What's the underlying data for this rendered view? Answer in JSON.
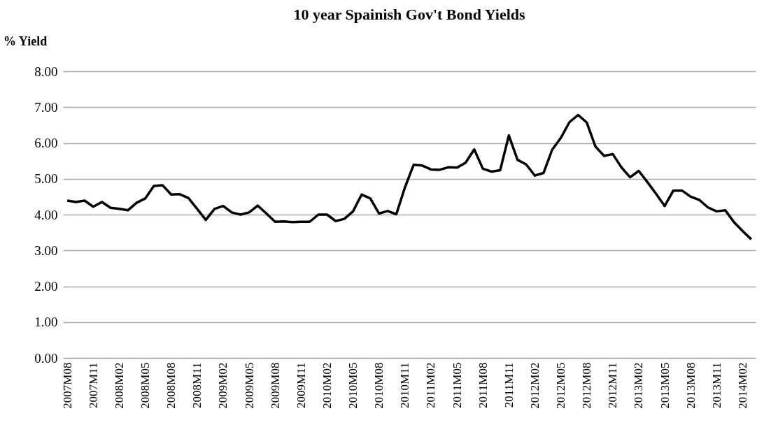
{
  "chart_data": {
    "type": "line",
    "title": "10 year Spainish Gov't Bond Yields",
    "ylabel": "% Yield",
    "categories": [
      "2007M08",
      null,
      null,
      "2007M11",
      null,
      null,
      "2008M02",
      null,
      null,
      "2008M05",
      null,
      null,
      "2008M08",
      null,
      null,
      "2008M11",
      null,
      null,
      "2009M02",
      null,
      null,
      "2009M05",
      null,
      null,
      "2009M08",
      null,
      null,
      "2009M11",
      null,
      null,
      "2010M02",
      null,
      null,
      "2010M05",
      null,
      null,
      "2010M08",
      null,
      null,
      "2010M11",
      null,
      null,
      "2011M02",
      null,
      null,
      "2011M05",
      null,
      null,
      "2011M08",
      null,
      null,
      "2011M11",
      null,
      null,
      "2012M02",
      null,
      null,
      "2012M05",
      null,
      null,
      "2012M08",
      null,
      null,
      "2012M11",
      null,
      null,
      "2013M02",
      null,
      null,
      "2013M05",
      null,
      null,
      "2013M08",
      null,
      null,
      "2013M11",
      null,
      null,
      "2014M02",
      null
    ],
    "series": [
      {
        "color": "#000000",
        "values": [
          4.39,
          4.35,
          4.39,
          4.22,
          4.35,
          4.19,
          4.16,
          4.12,
          4.33,
          4.45,
          4.8,
          4.82,
          4.56,
          4.57,
          4.46,
          4.16,
          3.85,
          4.16,
          4.24,
          4.06,
          4.0,
          4.06,
          4.25,
          4.03,
          3.8,
          3.81,
          3.79,
          3.8,
          3.8,
          4.0,
          4.0,
          3.82,
          3.88,
          4.09,
          4.56,
          4.45,
          4.03,
          4.1,
          4.01,
          4.76,
          5.39,
          5.37,
          5.26,
          5.25,
          5.32,
          5.31,
          5.45,
          5.82,
          5.28,
          5.2,
          5.24,
          6.21,
          5.53,
          5.4,
          5.09,
          5.16,
          5.81,
          6.14,
          6.58,
          6.78,
          6.57,
          5.9,
          5.64,
          5.69,
          5.32,
          5.04,
          5.22,
          4.91,
          4.58,
          4.24,
          4.67,
          4.67,
          4.5,
          4.41,
          4.2,
          4.09,
          4.12,
          3.79,
          3.54,
          3.31
        ]
      }
    ],
    "ylim": [
      0,
      8
    ],
    "yticks": [
      {
        "value": 0,
        "label": "0.00"
      },
      {
        "value": 1,
        "label": "1.00"
      },
      {
        "value": 2,
        "label": "2.00"
      },
      {
        "value": 3,
        "label": "3.00"
      },
      {
        "value": 4,
        "label": "4.00"
      },
      {
        "value": 5,
        "label": "5.00"
      },
      {
        "value": 6,
        "label": "6.00"
      },
      {
        "value": 7,
        "label": "7.00"
      },
      {
        "value": 8,
        "label": "8.00"
      }
    ],
    "grid": "y",
    "legend": false,
    "marker": "none",
    "line_style": "solid"
  }
}
